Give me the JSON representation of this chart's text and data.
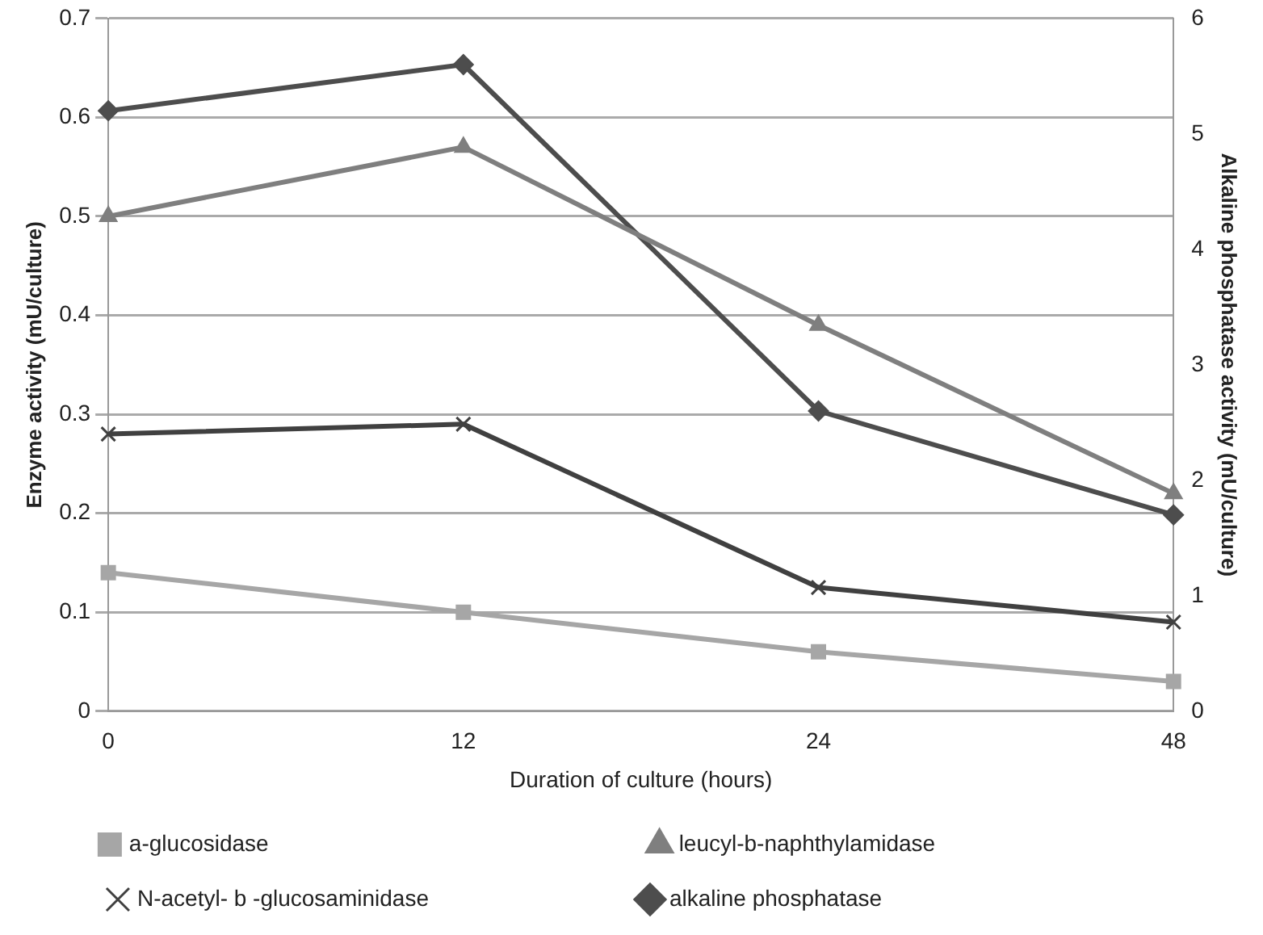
{
  "chart_data": {
    "type": "line",
    "xlabel": "Duration of culture (hours)",
    "ylabel": "Enzyme activity (mU/culture)",
    "y2label": "Alkaline phosphatase activity (mU/culture)",
    "categories": [
      "0",
      "12",
      "24",
      "48"
    ],
    "ylim": [
      0,
      0.7
    ],
    "yticks": [
      0,
      0.1,
      0.2,
      0.3,
      0.4,
      0.5,
      0.6,
      0.7
    ],
    "y2lim": [
      0,
      6
    ],
    "y2ticks": [
      0,
      1,
      2,
      3,
      4,
      5,
      6
    ],
    "grid": "y",
    "legend": "bottom",
    "line_style": "solid",
    "series": [
      {
        "name": "a-glucosidase",
        "color": "#a6a6a6",
        "marker": "square",
        "values": [
          0.14,
          0.1,
          0.06,
          0.03
        ]
      },
      {
        "name": "leucyl-b-naphthylamidase",
        "color": "#7f7f7f",
        "marker": "triangle",
        "values": [
          0.5,
          0.57,
          0.39,
          0.22
        ]
      },
      {
        "name": "N-acetyl- b -glucosaminidase",
        "color": "#404040",
        "marker": "cross",
        "values": [
          0.28,
          0.29,
          0.125,
          0.09
        ]
      },
      {
        "name": "alkaline phosphatase",
        "color": "#4d4d4d",
        "marker": "diamond",
        "axis": "y2",
        "values": [
          5.2,
          5.6,
          2.6,
          1.7
        ]
      }
    ]
  }
}
